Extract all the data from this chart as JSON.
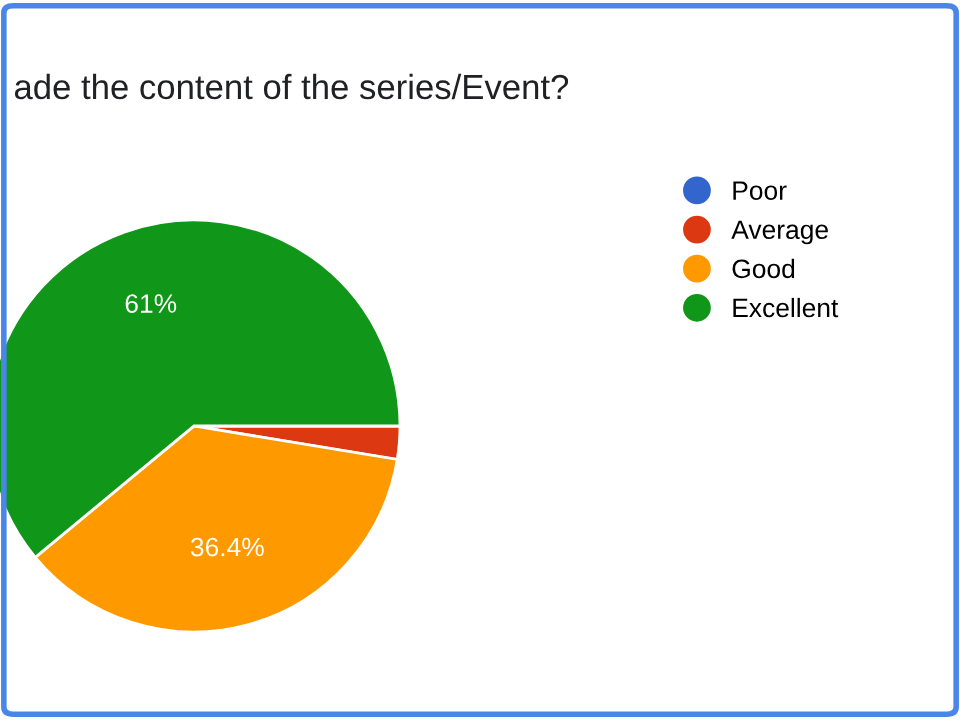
{
  "chart_data": {
    "type": "pie",
    "title": "ade the content of the series/Event?",
    "categories": [
      "Poor",
      "Average",
      "Good",
      "Excellent"
    ],
    "values": [
      0,
      2.6,
      36.4,
      61
    ],
    "colors": [
      "#3366cc",
      "#dc3912",
      "#ff9900",
      "#109618"
    ],
    "value_labels": [
      null,
      null,
      "36.4%",
      "61%"
    ],
    "legend": "right"
  }
}
